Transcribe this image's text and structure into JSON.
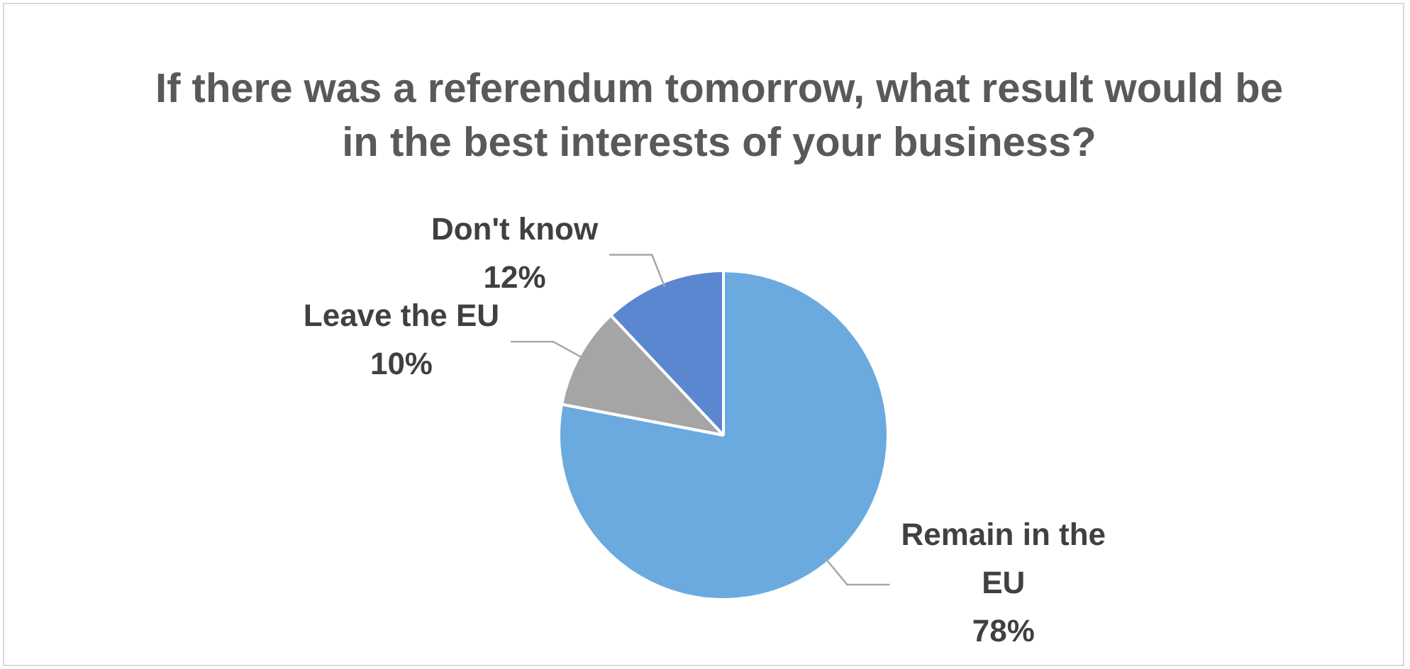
{
  "chart_data": {
    "type": "pie",
    "title": "If there was a referendum tomorrow, what result would be in the best interests of your business?",
    "categories": [
      "Remain in the EU",
      "Leave the EU",
      "Don't know"
    ],
    "values": [
      78,
      10,
      12
    ],
    "colors": [
      "#6aaade",
      "#a5a5a5",
      "#5a87d0"
    ],
    "value_labels": [
      "78%",
      "10%",
      "12%"
    ],
    "legend": false
  }
}
